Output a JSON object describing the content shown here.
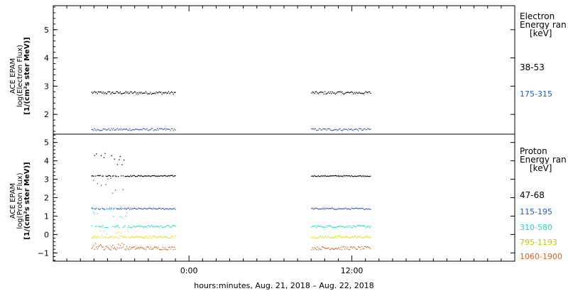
{
  "chart_data": [
    {
      "type": "scatter",
      "panel": "electron",
      "ylabel_lines": [
        "ACE EPAM",
        "log(Electron Flux)",
        "[1/(cm²s ster MeV)]"
      ],
      "ylim": [
        1.3,
        5.85
      ],
      "yticks": [
        2,
        3,
        4,
        5
      ],
      "legend_title": [
        "Electron",
        "Energy ran"
      ],
      "legend_unit": "[keV]",
      "gaps_hours": [
        [
          -1.0,
          9.0
        ]
      ],
      "series": [
        {
          "name": "38-53",
          "color": "#000000",
          "base": 2.78,
          "noise": 0.05
        },
        {
          "name": "175-315",
          "color": "#1f5bd6",
          "base": 1.48,
          "noise": 0.04
        }
      ]
    },
    {
      "type": "scatter",
      "panel": "proton",
      "ylabel_lines": [
        "ACE EPAM",
        "log(Proton Flux)",
        "[1/(cm²s ster MeV)]"
      ],
      "ylim": [
        -1.45,
        5.45
      ],
      "yticks": [
        -1,
        0,
        1,
        2,
        3,
        4,
        5
      ],
      "legend_title": [
        "Proton",
        "Energy ran"
      ],
      "legend_unit": "[keV]",
      "gaps_hours": [
        [
          -1.0,
          9.0
        ]
      ],
      "series": [
        {
          "name": "47-68",
          "color": "#000000",
          "base": 3.2,
          "noise": 0.03
        },
        {
          "name": "115-195",
          "color": "#1f5bd6",
          "base": 1.42,
          "noise": 0.04
        },
        {
          "name": "310-580",
          "color": "#22d6d6",
          "base": 0.46,
          "noise": 0.06
        },
        {
          "name": "795-1193",
          "color": "#e0e000",
          "base": -0.12,
          "noise": 0.07
        },
        {
          "name": "1060-1900",
          "color": "#e0601a",
          "base": -0.72,
          "noise": 0.09
        }
      ]
    }
  ],
  "x_axis": {
    "range_hours": [
      -10.0,
      24.0
    ],
    "major_ticks": [
      {
        "hour": 0,
        "label": "0:00"
      },
      {
        "hour": 12,
        "label": "12:00"
      }
    ],
    "label": "hours:minutes, Aug. 21, 2018 – Aug. 22, 2018"
  }
}
